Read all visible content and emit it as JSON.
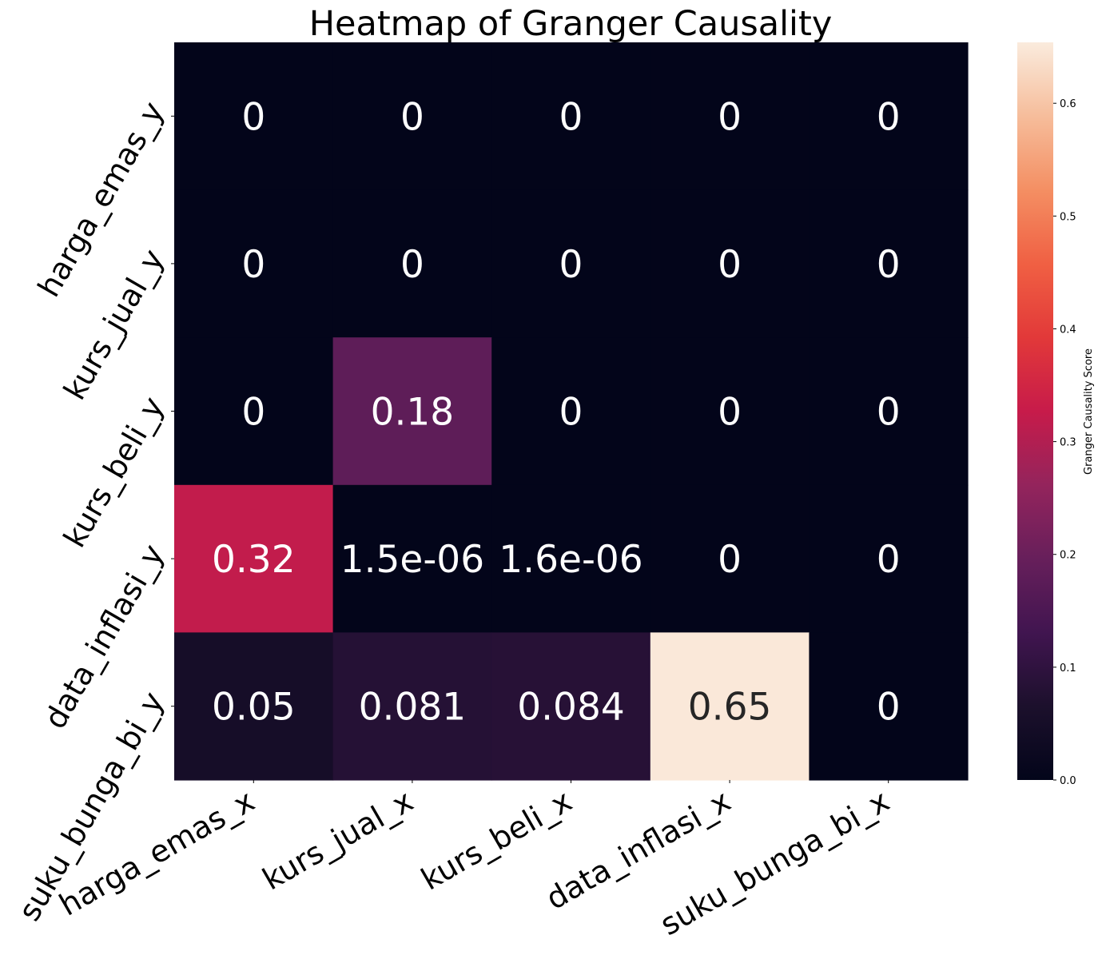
{
  "chart_data": {
    "type": "heatmap",
    "title": "Heatmap of Granger Causality",
    "x_categories": [
      "harga_emas_x",
      "kurs_jual_x",
      "kurs_beli_x",
      "data_inflasi_x",
      "suku_bunga_bi_x"
    ],
    "y_categories": [
      "harga_emas_y",
      "kurs_jual_y",
      "kurs_beli_y",
      "data_inflasi_y",
      "suku_bunga_bi_y"
    ],
    "values": [
      [
        0,
        0,
        0,
        0,
        0
      ],
      [
        0,
        0,
        0,
        0,
        0
      ],
      [
        0,
        0.18,
        0,
        0,
        0
      ],
      [
        0.32,
        1.5e-06,
        1.6e-06,
        0,
        0
      ],
      [
        0.05,
        0.081,
        0.084,
        0.65,
        0
      ]
    ],
    "annotations": [
      [
        "0",
        "0",
        "0",
        "0",
        "0"
      ],
      [
        "0",
        "0",
        "0",
        "0",
        "0"
      ],
      [
        "0",
        "0.18",
        "0",
        "0",
        "0"
      ],
      [
        "0.32",
        "1.5e-06",
        "1.6e-06",
        "0",
        "0"
      ],
      [
        "0.05",
        "0.081",
        "0.084",
        "0.65",
        "0"
      ]
    ],
    "colorbar": {
      "label": "Granger Causality Score",
      "range": [
        0,
        0.654
      ],
      "ticks": [
        "0.0",
        "0.1",
        "0.2",
        "0.3",
        "0.4",
        "0.5",
        "0.6"
      ],
      "colormap": "rocket"
    }
  }
}
